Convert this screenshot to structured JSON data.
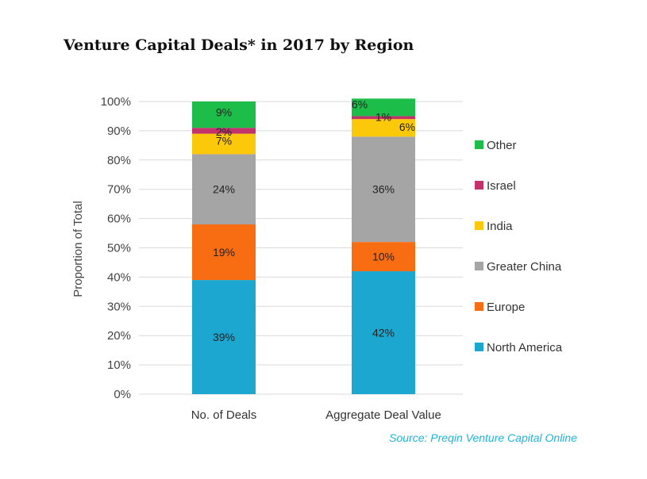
{
  "chart_data": {
    "type": "bar",
    "stacked": true,
    "title": "Venture Capital Deals* in 2017 by Region",
    "ylabel": "Proportion of Total",
    "xlabel": "",
    "ylim": [
      0,
      100
    ],
    "yticks": [
      "0%",
      "10%",
      "20%",
      "30%",
      "40%",
      "50%",
      "60%",
      "70%",
      "80%",
      "90%",
      "100%"
    ],
    "categories": [
      "No. of Deals",
      "Aggregate Deal Value"
    ],
    "series": [
      {
        "name": "North America",
        "values": [
          39,
          42
        ],
        "labels": [
          "39%",
          "42%"
        ],
        "color": "#1ba7cf"
      },
      {
        "name": "Europe",
        "values": [
          19,
          10
        ],
        "labels": [
          "19%",
          "10%"
        ],
        "color": "#f86d12"
      },
      {
        "name": "Greater China",
        "values": [
          24,
          36
        ],
        "labels": [
          "24%",
          "36%"
        ],
        "color": "#a5a5a5"
      },
      {
        "name": "India",
        "values": [
          7,
          6
        ],
        "labels": [
          "7%",
          "6%"
        ],
        "color": "#fcc80a"
      },
      {
        "name": "Israel",
        "values": [
          2,
          1
        ],
        "labels": [
          "2%",
          "1%"
        ],
        "color": "#c2336c"
      },
      {
        "name": "Other",
        "values": [
          9,
          6
        ],
        "labels": [
          "9%",
          "6%"
        ],
        "color": "#1dbd4a"
      }
    ],
    "legend": "right",
    "grid": true,
    "source": "Source: Preqin Venture Capital Online"
  }
}
